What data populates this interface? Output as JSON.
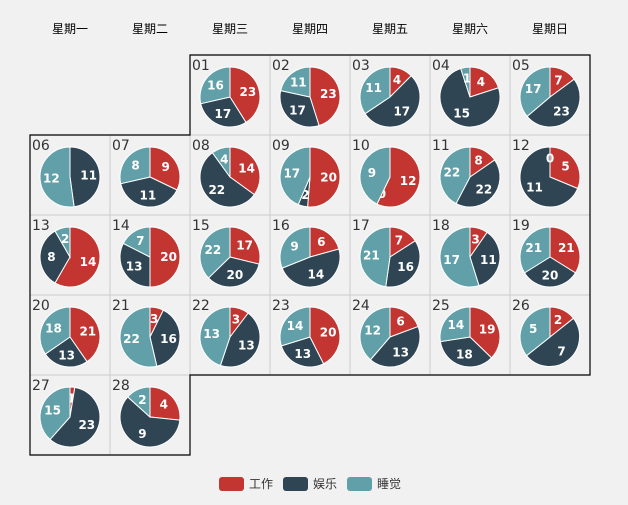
{
  "chart_data": {
    "type": "pie",
    "layout": "calendar",
    "title": "",
    "weekdays": [
      "星期一",
      "星期二",
      "星期三",
      "星期四",
      "星期五",
      "星期六",
      "星期日"
    ],
    "legend": {
      "position": "bottom",
      "items": [
        {
          "label": "工作",
          "color": "#c23531"
        },
        {
          "label": "娱乐",
          "color": "#2f4554"
        },
        {
          "label": "睡觉",
          "color": "#61a0a8"
        }
      ]
    },
    "days": [
      {
        "date": "01",
        "work": 23,
        "play": 17,
        "sleep": 16
      },
      {
        "date": "02",
        "work": 23,
        "play": 17,
        "sleep": 11
      },
      {
        "date": "03",
        "work": 4,
        "play": 17,
        "sleep": 11
      },
      {
        "date": "04",
        "work": 4,
        "play": 15,
        "sleep": 1
      },
      {
        "date": "05",
        "work": 7,
        "play": 23,
        "sleep": 17
      },
      {
        "date": "06",
        "work": 0,
        "play": 11,
        "sleep": 12
      },
      {
        "date": "07",
        "work": 9,
        "play": 11,
        "sleep": 8
      },
      {
        "date": "08",
        "work": 14,
        "play": 22,
        "sleep": 4
      },
      {
        "date": "09",
        "work": 20,
        "play": 2,
        "sleep": 17
      },
      {
        "date": "10",
        "work": 12,
        "play": 0,
        "sleep": 9
      },
      {
        "date": "11",
        "work": 8,
        "play": 22,
        "sleep": 22
      },
      {
        "date": "12",
        "work": 5,
        "play": 11,
        "sleep": 0
      },
      {
        "date": "13",
        "work": 14,
        "play": 8,
        "sleep": 2
      },
      {
        "date": "14",
        "work": 20,
        "play": 13,
        "sleep": 7
      },
      {
        "date": "15",
        "work": 17,
        "play": 20,
        "sleep": 22
      },
      {
        "date": "16",
        "work": 6,
        "play": 14,
        "sleep": 9
      },
      {
        "date": "17",
        "work": 7,
        "play": 16,
        "sleep": 21
      },
      {
        "date": "18",
        "work": 3,
        "play": 11,
        "sleep": 17
      },
      {
        "date": "19",
        "work": 21,
        "play": 20,
        "sleep": 21
      },
      {
        "date": "20",
        "work": 21,
        "play": 13,
        "sleep": 18
      },
      {
        "date": "21",
        "work": 3,
        "play": 16,
        "sleep": 22
      },
      {
        "date": "22",
        "work": 3,
        "play": 13,
        "sleep": 13
      },
      {
        "date": "23",
        "work": 20,
        "play": 13,
        "sleep": 14
      },
      {
        "date": "24",
        "work": 6,
        "play": 13,
        "sleep": 12
      },
      {
        "date": "25",
        "work": 19,
        "play": 18,
        "sleep": 14
      },
      {
        "date": "26",
        "work": 2,
        "play": 7,
        "sleep": 5
      },
      {
        "date": "27",
        "work": 1,
        "play": 23,
        "sleep": 15
      },
      {
        "date": "28",
        "work": 4,
        "play": 9,
        "sleep": 2
      }
    ]
  }
}
